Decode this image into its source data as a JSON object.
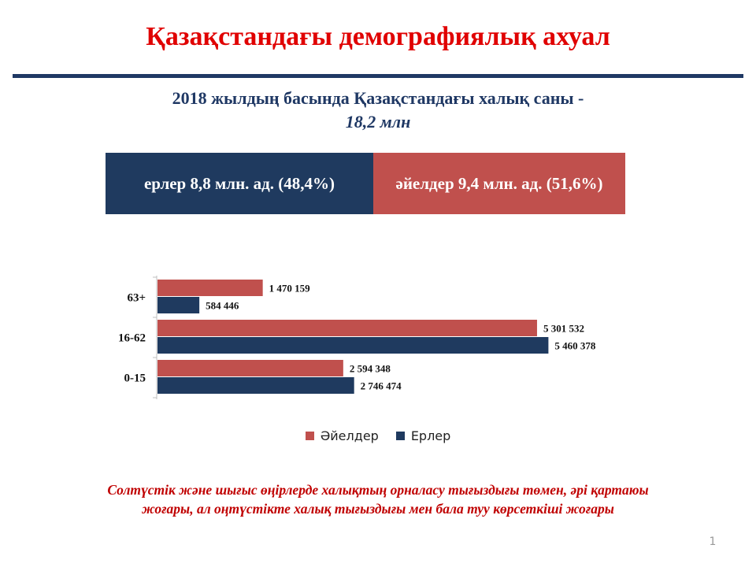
{
  "header": {
    "title": "Қазақстандағы демографиялық ахуал",
    "subtitle": "2018 жылдың басында Қазақстандағы халық саны -",
    "subtitle_value": "18,2 млн"
  },
  "split": {
    "men_label": "ерлер 8,8 млн. ад. (48,4%)",
    "women_label": "әйелдер 9,4 млн. ад. (51,6%)",
    "colors": {
      "men": "#1f3a5f",
      "women": "#c0504d"
    }
  },
  "chart_data": {
    "type": "bar",
    "orientation": "horizontal",
    "categories": [
      "63+",
      "16-62",
      "0-15"
    ],
    "series": [
      {
        "name": "Әйелдер",
        "color": "#c0504d",
        "values": [
          1470159,
          5301532,
          2594348
        ],
        "labels": [
          "1 470 159",
          "5 301 532",
          "2 594 348"
        ]
      },
      {
        "name": "Ерлер",
        "color": "#1f3a5f",
        "values": [
          584446,
          5460378,
          2746474
        ],
        "labels": [
          "584 446",
          "5 460 378",
          "2 746 474"
        ]
      }
    ],
    "xlim": [
      0,
      5500000
    ],
    "grid": false,
    "legend": "bottom"
  },
  "footer": {
    "note_line1": "Солтүстік және шығыс өңірлерде халықтың орналасу тығыздығы төмен, әрі қартаюы",
    "note_line2": "жоғары, ал оңтүстікте халық тығыздығы мен бала туу көрсеткіші жоғары",
    "page_number": "1"
  }
}
